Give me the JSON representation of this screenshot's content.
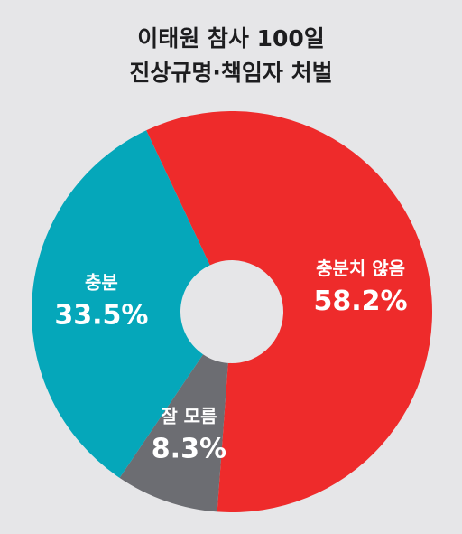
{
  "chart_data": {
    "type": "donut",
    "title": [
      "이태원 참사 100일",
      "진상규명·책임자 처벌"
    ],
    "categories": [
      "충분치 않음",
      "잘 모름",
      "충분"
    ],
    "values": [
      58.2,
      8.3,
      33.5
    ],
    "value_labels": [
      "58.2%",
      "8.3%",
      "33.5%"
    ],
    "colors": [
      "#ee2b2b",
      "#6c6d72",
      "#05a7ba"
    ]
  }
}
